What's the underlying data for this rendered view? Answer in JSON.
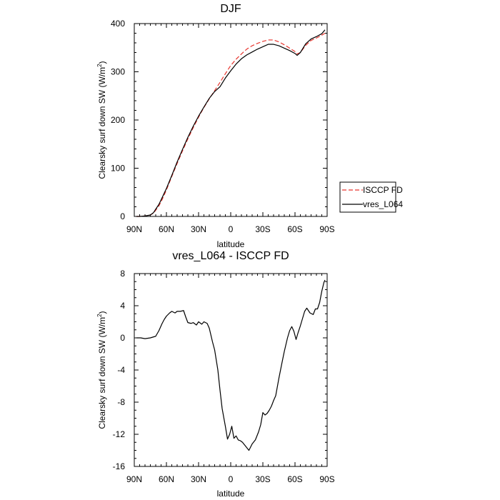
{
  "chart_data": [
    {
      "type": "line",
      "title": "DJF",
      "xlabel": "latitude",
      "ylabel": "Clearsky surf down SW (W/m",
      "ylabel_sup": "2",
      "ylabel_close": ")",
      "xlim": [
        90,
        -90
      ],
      "ylim": [
        0,
        400
      ],
      "xticks": [
        90,
        60,
        30,
        0,
        -30,
        -60,
        -90
      ],
      "xtick_labels": [
        "90N",
        "60N",
        "30N",
        "0",
        "30S",
        "60S",
        "90S"
      ],
      "yticks": [
        0,
        100,
        200,
        300,
        400
      ],
      "ytick_labels": [
        "0",
        "100",
        "200",
        "300",
        "400"
      ],
      "legend": {
        "placement": "outside-right",
        "entries": [
          "ISCCP FD",
          "vres_L064"
        ]
      },
      "series": [
        {
          "name": "ISCCP FD",
          "color": "#e8352e",
          "dash": "dashed",
          "x": [
            88,
            85,
            80,
            75,
            72,
            70,
            67,
            64,
            60,
            55,
            50,
            45,
            40,
            35,
            30,
            25,
            20,
            15,
            10,
            5,
            0,
            -5,
            -10,
            -15,
            -20,
            -25,
            -30,
            -35,
            -40,
            -45,
            -50,
            -55,
            -60,
            -62,
            -65,
            -70,
            -75,
            -80,
            -85,
            -88
          ],
          "y": [
            0,
            0,
            1,
            3,
            7,
            13,
            22,
            35,
            55,
            83,
            110,
            136,
            161,
            184,
            206,
            226,
            244,
            261,
            278,
            296,
            313,
            326,
            337,
            347,
            354,
            359,
            363,
            366,
            366,
            362,
            356,
            349,
            342,
            337,
            340,
            355,
            365,
            370,
            376,
            380
          ]
        },
        {
          "name": "vres_L064",
          "color": "#000000",
          "dash": "solid",
          "x": [
            88,
            85,
            80,
            75,
            72,
            70,
            67,
            64,
            60,
            55,
            50,
            45,
            40,
            35,
            30,
            25,
            20,
            15,
            10,
            5,
            0,
            -5,
            -10,
            -15,
            -20,
            -25,
            -30,
            -35,
            -40,
            -45,
            -50,
            -55,
            -60,
            -62,
            -65,
            -70,
            -75,
            -80,
            -85,
            -88
          ],
          "y": [
            0,
            0,
            1,
            3,
            8,
            15,
            25,
            39,
            58,
            85,
            113,
            139,
            164,
            187,
            208,
            227,
            245,
            259,
            269,
            287,
            302,
            316,
            327,
            335,
            341,
            347,
            352,
            357,
            357,
            354,
            349,
            344,
            338,
            334,
            340,
            358,
            368,
            373,
            379,
            387
          ]
        }
      ]
    },
    {
      "type": "line",
      "title": "vres_L064 - ISCCP FD",
      "xlabel": "latitude",
      "ylabel": "Clearsky surf down SW (W/m",
      "ylabel_sup": "2",
      "ylabel_close": ")",
      "xlim": [
        90,
        -90
      ],
      "ylim": [
        -16,
        8
      ],
      "xticks": [
        90,
        60,
        30,
        0,
        -30,
        -60,
        -90
      ],
      "xtick_labels": [
        "90N",
        "60N",
        "30N",
        "0",
        "30S",
        "60S",
        "90S"
      ],
      "yticks": [
        8,
        4,
        0,
        -4,
        -8,
        -12,
        -16
      ],
      "ytick_labels": [
        "8",
        "4",
        "0",
        "-4",
        "-8",
        "-12",
        "-16"
      ],
      "series": [
        {
          "color": "#000000",
          "dash": "solid",
          "x": [
            88,
            84,
            80,
            75,
            70,
            67,
            64,
            62,
            60,
            57,
            55,
            52,
            50,
            47,
            44,
            42,
            40,
            37,
            35,
            32,
            30,
            27,
            25,
            22,
            20,
            17,
            15,
            12,
            10,
            8,
            5,
            3,
            1,
            -1,
            -3,
            -5,
            -7,
            -9,
            -11,
            -14,
            -17,
            -20,
            -23,
            -26,
            -28,
            -30,
            -32,
            -34,
            -36,
            -38,
            -40,
            -42,
            -45,
            -48,
            -50,
            -53,
            -55,
            -57,
            -59,
            -61,
            -63,
            -65,
            -67,
            -69,
            -71,
            -74,
            -77,
            -79,
            -81,
            -83,
            -85,
            -87,
            -88
          ],
          "y": [
            0.0,
            0.0,
            -0.1,
            0.0,
            0.2,
            0.9,
            1.8,
            2.3,
            2.7,
            3.1,
            3.3,
            3.1,
            3.3,
            3.3,
            3.4,
            2.6,
            1.9,
            1.8,
            1.9,
            1.6,
            2.0,
            1.7,
            2.0,
            1.8,
            1.2,
            -0.5,
            -1.5,
            -4.0,
            -6.5,
            -8.8,
            -11.0,
            -12.6,
            -12.0,
            -11.0,
            -12.5,
            -12.2,
            -12.7,
            -12.8,
            -13.0,
            -13.5,
            -14.0,
            -13.2,
            -12.7,
            -11.7,
            -10.8,
            -9.3,
            -9.6,
            -9.4,
            -9.0,
            -8.5,
            -7.8,
            -7.2,
            -5.0,
            -3.0,
            -1.7,
            0.0,
            0.9,
            1.4,
            0.8,
            -0.2,
            0.7,
            1.5,
            2.4,
            3.3,
            3.7,
            3.1,
            2.9,
            3.6,
            3.6,
            4.4,
            5.8,
            6.9,
            7.2
          ]
        }
      ]
    }
  ]
}
